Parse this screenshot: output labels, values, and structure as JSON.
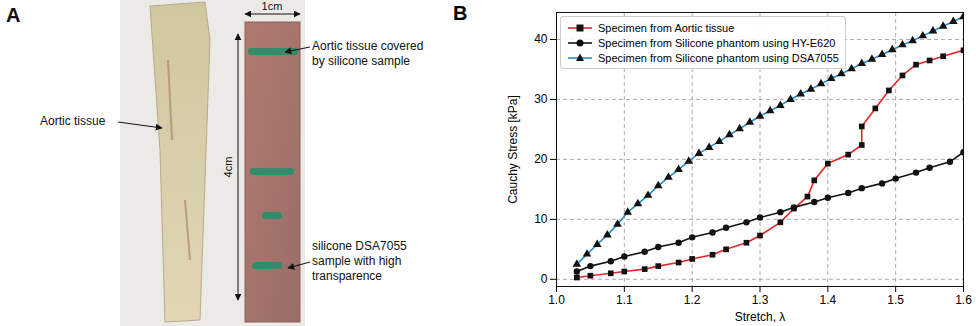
{
  "panel_a": {
    "letter": "A",
    "left_label": "Aortic tissue",
    "width_label": "1cm",
    "length_label": "4cm",
    "top_label": [
      "Aortic tissue covered",
      "by silicone sample"
    ],
    "bottom_label": [
      "silicone DSA7055",
      "sample with high",
      "transparence"
    ]
  },
  "chart_data": {
    "type": "line",
    "letter": "B",
    "x_label": "Stretch, λ",
    "y_label": "Cauchy Stress [kPa]",
    "xlim": [
      1.0,
      1.6
    ],
    "ylim": [
      -1.2,
      44.5
    ],
    "xticks": [
      {
        "value": 1.0,
        "label": "1.0"
      },
      1.1,
      1.2,
      1.3,
      1.4,
      1.5,
      1.6
    ],
    "yticks": [
      0,
      10,
      20,
      30,
      40
    ],
    "grid": true,
    "legend": "upper left",
    "series": [
      {
        "name": "Specimen from Aortic tissue",
        "color": "#e8262a",
        "marker": "square",
        "x": [
          1.03,
          1.05,
          1.08,
          1.1,
          1.13,
          1.15,
          1.18,
          1.2,
          1.23,
          1.25,
          1.28,
          1.3,
          1.33,
          1.35,
          1.37,
          1.38,
          1.4,
          1.43,
          1.45,
          1.45,
          1.47,
          1.49,
          1.51,
          1.53,
          1.55,
          1.57,
          1.6
        ],
        "values": [
          0.3,
          0.6,
          1.0,
          1.3,
          1.7,
          2.2,
          2.8,
          3.4,
          4.1,
          5.0,
          6.1,
          7.3,
          9.5,
          11.8,
          13.8,
          16.5,
          19.3,
          20.8,
          22.4,
          25.5,
          28.5,
          31.5,
          34.0,
          35.8,
          36.5,
          37.2,
          38.2
        ]
      },
      {
        "name": "Specimen from Silicone phantom using HY-E620",
        "color": "#111111",
        "marker": "circle",
        "x": [
          1.03,
          1.05,
          1.08,
          1.1,
          1.13,
          1.15,
          1.18,
          1.2,
          1.23,
          1.25,
          1.28,
          1.3,
          1.33,
          1.35,
          1.38,
          1.4,
          1.43,
          1.45,
          1.48,
          1.5,
          1.53,
          1.55,
          1.58,
          1.6
        ],
        "values": [
          1.3,
          2.2,
          3.0,
          3.8,
          4.6,
          5.4,
          6.1,
          7.0,
          7.8,
          8.6,
          9.5,
          10.3,
          11.2,
          12.0,
          12.9,
          13.6,
          14.4,
          15.2,
          16.0,
          16.8,
          17.8,
          18.6,
          19.6,
          21.2
        ]
      },
      {
        "name": "Specimen from Silicone phantom using DSA7055",
        "color": "#1f8fcf",
        "marker": "triangle",
        "x": [
          1.03,
          1.045,
          1.06,
          1.075,
          1.09,
          1.105,
          1.12,
          1.135,
          1.15,
          1.165,
          1.18,
          1.195,
          1.21,
          1.225,
          1.24,
          1.255,
          1.27,
          1.285,
          1.3,
          1.315,
          1.33,
          1.345,
          1.36,
          1.375,
          1.39,
          1.405,
          1.42,
          1.435,
          1.45,
          1.465,
          1.48,
          1.495,
          1.51,
          1.525,
          1.54,
          1.555,
          1.57,
          1.585,
          1.6
        ],
        "values": [
          2.5,
          4.2,
          5.8,
          7.4,
          9.2,
          11.2,
          12.6,
          14.0,
          15.6,
          17.0,
          18.3,
          19.7,
          21.0,
          22.0,
          23.0,
          24.1,
          25.1,
          26.2,
          27.2,
          28.1,
          29.0,
          30.0,
          30.9,
          31.7,
          32.6,
          33.5,
          34.3,
          35.1,
          36.0,
          36.7,
          37.5,
          38.3,
          39.1,
          39.8,
          40.6,
          41.4,
          42.2,
          43.0,
          43.8
        ]
      }
    ]
  }
}
